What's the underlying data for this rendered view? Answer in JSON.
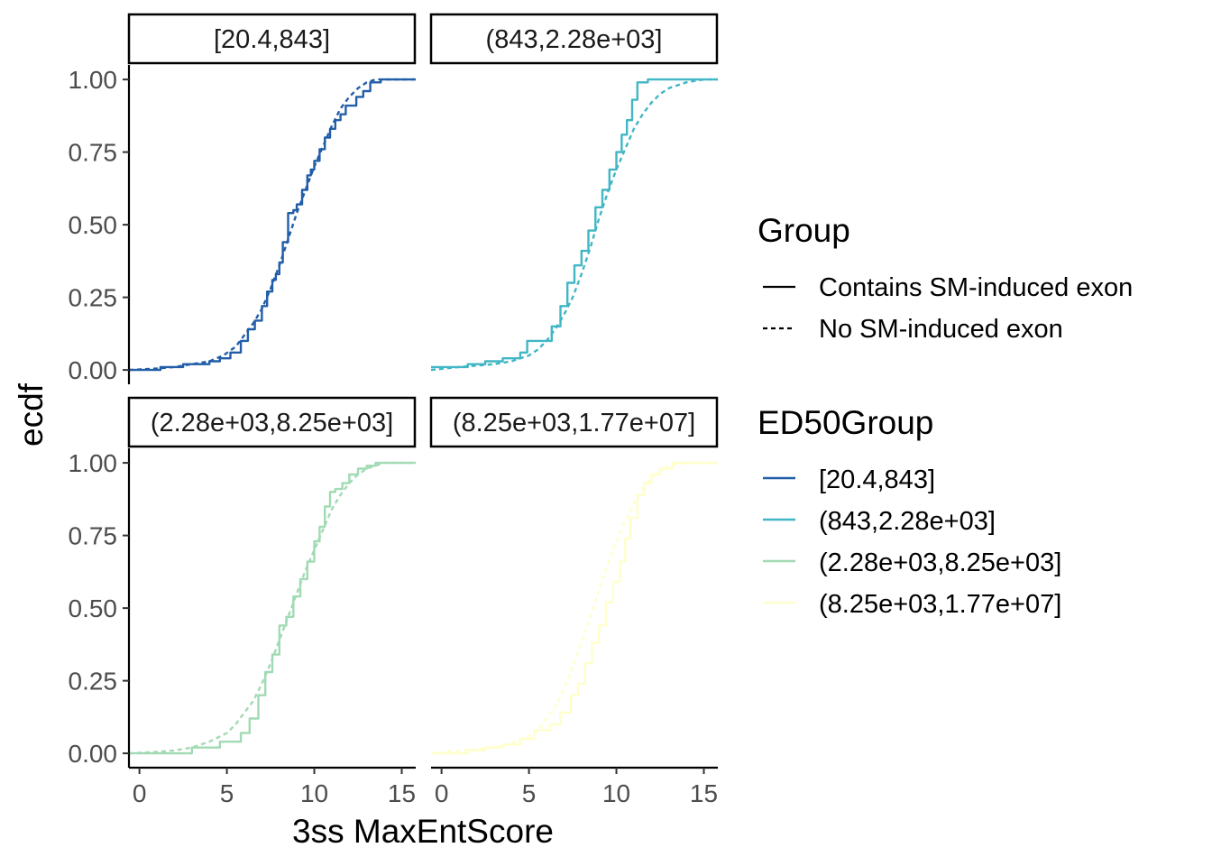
{
  "chart_data": {
    "type": "line",
    "title": "",
    "xlabel": "3ss MaxEntScore",
    "ylabel": "ecdf",
    "xlim": [
      -0.6,
      15.8
    ],
    "ylim": [
      -0.04,
      1.05
    ],
    "x_ticks": [
      0,
      5,
      10,
      15
    ],
    "x_tick_labels": [
      "0",
      "5",
      "10",
      "15"
    ],
    "y_ticks": [
      0,
      0.25,
      0.5,
      0.75,
      1.0
    ],
    "y_tick_labels": [
      "0.00",
      "0.25",
      "0.50",
      "0.75",
      "1.00"
    ],
    "grid": false,
    "legend_placement": "right",
    "legends": [
      {
        "title": "Group",
        "entries": [
          {
            "label": "Contains SM-induced exon",
            "linetype": "solid"
          },
          {
            "label": "No SM-induced exon",
            "linetype": "dashed"
          }
        ]
      },
      {
        "title": "ED50Group",
        "entries": [
          {
            "label": "[20.4,843]",
            "color": "#225ea8"
          },
          {
            "label": "(843,2.28e+03]",
            "color": "#41b6c4"
          },
          {
            "label": "(2.28e+03,8.25e+03]",
            "color": "#a1dab4"
          },
          {
            "label": "(8.25e+03,1.77e+07]",
            "color": "#ffffcc"
          }
        ]
      }
    ],
    "panels": [
      {
        "strip": "[20.4,843]",
        "color": "#225ea8",
        "series": [
          {
            "linetype": "solid",
            "step": true,
            "x": [
              -0.6,
              0.5,
              1.2,
              2.5,
              3.2,
              4.0,
              4.6,
              5.2,
              5.8,
              6.2,
              6.6,
              7.0,
              7.3,
              7.6,
              7.8,
              8.0,
              8.2,
              8.5,
              8.8,
              9.0,
              9.3,
              9.6,
              9.8,
              10.0,
              10.3,
              10.6,
              10.9,
              11.2,
              11.5,
              11.8,
              12.1,
              12.4,
              12.8,
              13.2,
              13.8,
              15.8
            ],
            "y": [
              0.0,
              0.0,
              0.01,
              0.02,
              0.02,
              0.03,
              0.04,
              0.06,
              0.1,
              0.14,
              0.17,
              0.22,
              0.27,
              0.31,
              0.33,
              0.37,
              0.44,
              0.54,
              0.55,
              0.57,
              0.62,
              0.67,
              0.69,
              0.72,
              0.76,
              0.8,
              0.83,
              0.86,
              0.88,
              0.91,
              0.91,
              0.94,
              0.96,
              0.99,
              1.0,
              1.0
            ]
          },
          {
            "linetype": "dashed",
            "step": false,
            "x": [
              -0.6,
              1.0,
              2.0,
              3.0,
              4.0,
              4.8,
              5.5,
              6.0,
              6.5,
              7.0,
              7.5,
              8.0,
              8.5,
              9.0,
              9.5,
              10.0,
              10.5,
              11.0,
              11.5,
              12.0,
              12.5,
              13.0,
              13.5,
              14.0,
              15.8
            ],
            "y": [
              0.0,
              0.005,
              0.01,
              0.02,
              0.03,
              0.05,
              0.08,
              0.12,
              0.16,
              0.21,
              0.28,
              0.36,
              0.45,
              0.54,
              0.62,
              0.7,
              0.77,
              0.84,
              0.9,
              0.94,
              0.97,
              0.99,
              1.0,
              1.0,
              1.0
            ]
          }
        ]
      },
      {
        "strip": "(843,2.28e+03]",
        "color": "#41b6c4",
        "series": [
          {
            "linetype": "solid",
            "step": true,
            "x": [
              -0.6,
              0.5,
              1.5,
              2.5,
              3.5,
              4.5,
              4.9,
              5.8,
              6.3,
              6.8,
              7.2,
              7.6,
              8.0,
              8.4,
              8.8,
              9.2,
              9.6,
              10.0,
              10.3,
              10.6,
              10.9,
              11.2,
              11.5,
              11.8,
              12.2,
              12.8,
              13.5,
              15.8
            ],
            "y": [
              0.01,
              0.01,
              0.02,
              0.03,
              0.04,
              0.06,
              0.1,
              0.1,
              0.15,
              0.22,
              0.3,
              0.36,
              0.41,
              0.48,
              0.56,
              0.62,
              0.69,
              0.75,
              0.81,
              0.86,
              0.93,
              0.99,
              0.99,
              1.0,
              1.0,
              1.0,
              1.0,
              1.0
            ]
          },
          {
            "linetype": "dashed",
            "step": false,
            "x": [
              -0.6,
              1.0,
              2.0,
              3.0,
              4.0,
              5.0,
              5.5,
              6.0,
              6.5,
              7.0,
              7.5,
              8.0,
              8.5,
              9.0,
              9.5,
              10.0,
              10.5,
              11.0,
              11.5,
              12.0,
              12.5,
              13.0,
              13.5,
              14.0,
              15.0,
              15.8
            ],
            "y": [
              0.0,
              0.01,
              0.015,
              0.02,
              0.03,
              0.05,
              0.07,
              0.1,
              0.14,
              0.19,
              0.25,
              0.33,
              0.42,
              0.52,
              0.61,
              0.69,
              0.76,
              0.83,
              0.88,
              0.92,
              0.95,
              0.97,
              0.98,
              0.99,
              1.0,
              1.0
            ]
          }
        ]
      },
      {
        "strip": "(2.28e+03,8.25e+03]",
        "color": "#a1dab4",
        "series": [
          {
            "linetype": "solid",
            "step": true,
            "x": [
              -0.6,
              1.0,
              2.0,
              3.0,
              4.6,
              5.8,
              6.3,
              6.8,
              7.2,
              7.6,
              8.0,
              8.4,
              8.8,
              9.2,
              9.6,
              10.0,
              10.3,
              10.6,
              10.9,
              11.2,
              11.6,
              12.0,
              12.5,
              13.0,
              13.5,
              15.8
            ],
            "y": [
              0.0,
              0.0,
              0.0,
              0.02,
              0.04,
              0.07,
              0.12,
              0.2,
              0.28,
              0.34,
              0.44,
              0.47,
              0.54,
              0.6,
              0.66,
              0.73,
              0.78,
              0.85,
              0.9,
              0.91,
              0.93,
              0.96,
              0.98,
              0.99,
              1.0,
              1.0
            ]
          },
          {
            "linetype": "dashed",
            "step": false,
            "x": [
              -0.6,
              1.0,
              2.0,
              3.0,
              4.0,
              5.0,
              5.5,
              6.0,
              6.5,
              7.0,
              7.5,
              8.0,
              8.5,
              9.0,
              9.5,
              10.0,
              10.5,
              11.0,
              11.5,
              12.0,
              12.5,
              13.0,
              14.0,
              15.8
            ],
            "y": [
              0.0,
              0.005,
              0.01,
              0.02,
              0.04,
              0.07,
              0.1,
              0.14,
              0.18,
              0.24,
              0.31,
              0.39,
              0.47,
              0.55,
              0.63,
              0.7,
              0.77,
              0.84,
              0.89,
              0.93,
              0.96,
              0.98,
              1.0,
              1.0
            ]
          }
        ]
      },
      {
        "strip": "(8.25e+03,1.77e+07]",
        "color": "#ffffcc",
        "series": [
          {
            "linetype": "solid",
            "step": true,
            "x": [
              -0.6,
              0.5,
              1.5,
              2.5,
              3.5,
              4.5,
              5.3,
              6.2,
              6.8,
              7.4,
              7.8,
              8.2,
              8.6,
              9.0,
              9.4,
              9.8,
              10.2,
              10.5,
              10.8,
              11.2,
              11.6,
              12.0,
              12.5,
              13.2,
              15.8
            ],
            "y": [
              0.0,
              0.0,
              0.01,
              0.02,
              0.03,
              0.05,
              0.08,
              0.1,
              0.14,
              0.2,
              0.24,
              0.31,
              0.38,
              0.44,
              0.52,
              0.59,
              0.66,
              0.74,
              0.81,
              0.89,
              0.93,
              0.96,
              0.98,
              1.0,
              1.0
            ]
          },
          {
            "linetype": "dashed",
            "step": false,
            "x": [
              -0.6,
              1.0,
              2.0,
              3.0,
              4.0,
              5.0,
              5.5,
              6.0,
              6.5,
              7.0,
              7.5,
              8.0,
              8.5,
              9.0,
              9.5,
              10.0,
              10.5,
              11.0,
              11.5,
              12.0,
              12.5,
              13.0,
              14.0,
              15.8
            ],
            "y": [
              0.0,
              0.01,
              0.015,
              0.02,
              0.035,
              0.06,
              0.08,
              0.12,
              0.16,
              0.22,
              0.3,
              0.38,
              0.47,
              0.56,
              0.65,
              0.73,
              0.8,
              0.86,
              0.91,
              0.95,
              0.97,
              0.99,
              1.0,
              1.0
            ]
          }
        ]
      }
    ]
  }
}
